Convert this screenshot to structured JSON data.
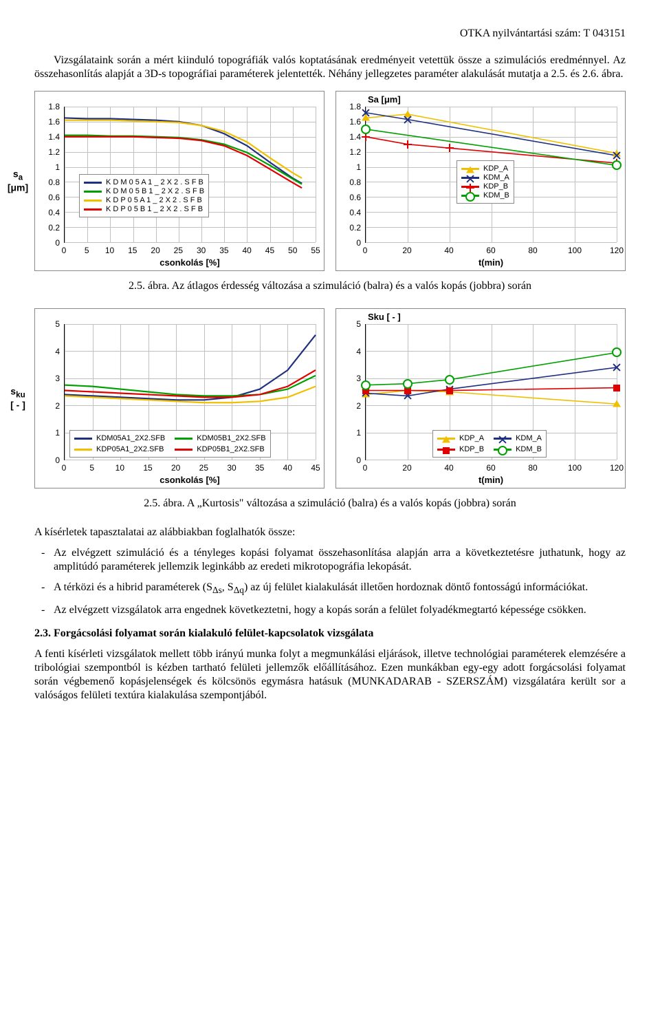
{
  "header": {
    "text": "OTKA nyilvántartási szám:  T  043151"
  },
  "paragraphs": {
    "intro": "Vizsgálataink során a mért kiinduló topográfiák valós koptatásának eredményeit vetettük össze a szimulációs eredménnyel. Az összehasonlítás alapját a 3D-s topográfiai paraméterek jelentették. Néhány jellegzetes paraméter alakulását mutatja a 2.5. és 2.6. ábra.",
    "caption25": "2.5. ábra. Az átlagos érdesség változása a szimuláció (balra) és a valós kopás (jobbra) során",
    "caption26": "2.5. ábra. A „Kurtosis\" változása a szimuláció (balra) és a valós kopás (jobbra) során",
    "conc_intro": "A kísérletek tapasztalatai az alábbiakban foglalhatók össze:",
    "bullet1": "Az elvégzett szimuláció és a tényleges kopási folyamat összehasonlítása alapján arra a következtetésre juthatunk, hogy az amplitúdó paraméterek jellemzik leginkább az eredeti mikrotopográfia lekopását.",
    "bullet2": "A térközi és a hibrid paraméterek (SΔs, SΔq) az új felület kialakulását illetően hordoznak döntő fontosságú információkat.",
    "bullet3": "Az elvégzett vizsgálatok arra engednek következtetni, hogy a kopás során a felület folyadékmegtartó képessége csökken.",
    "sec23_title": "2.3. Forgácsolási folyamat során kialakuló felület-kapcsolatok vizsgálata",
    "sec23_body": "A fenti kísérleti vizsgálatok mellett több irányú munka folyt a megmunkálási eljárások, illetve technológiai paraméterek elemzésére a tribológiai szempontból is kézben tartható felületi jellemzők előállításához. Ezen munkákban egy-egy adott forgácsolási folyamat során végbemenő kopásjelenségek és kölcsönös egymásra hatásuk (MUNKADARAB - SZERSZÁM) vizsgálatára került sor a valóságos felületi textúra kialakulása szempontjából."
  },
  "colors": {
    "blue": "#203080",
    "green": "#00a000",
    "yellow": "#f0c000",
    "red": "#e00000",
    "grid": "#c0c0c0",
    "border": "#888888"
  },
  "chart_sa_sim": {
    "y_title": "sₐ\n[μm]",
    "x_title": "csonkolás [%]",
    "x_ticks": [
      0,
      5,
      10,
      15,
      20,
      25,
      30,
      35,
      40,
      45,
      50,
      55
    ],
    "y_ticks": [
      0,
      0.2,
      0.4,
      0.6,
      0.8,
      1,
      1.2,
      1.4,
      1.6,
      1.8
    ],
    "xlim": [
      0,
      55
    ],
    "ylim": [
      0,
      1.8
    ],
    "legend": [
      "K D M 0 5 A 1 _ 2 X 2 . S F B",
      "K D M 0 5 B 1 _ 2 X 2 . S F B",
      "K D P 0 5 A 1 _ 2 X 2 . S F B",
      "K D P 0 5 B 1 _ 2 X 2 . S F B"
    ],
    "series": {
      "KDM05A1": {
        "color": "#203080",
        "pts": [
          [
            0,
            1.65
          ],
          [
            5,
            1.64
          ],
          [
            10,
            1.64
          ],
          [
            15,
            1.63
          ],
          [
            20,
            1.62
          ],
          [
            25,
            1.6
          ],
          [
            30,
            1.55
          ],
          [
            35,
            1.44
          ],
          [
            40,
            1.28
          ],
          [
            45,
            1.06
          ],
          [
            50,
            0.85
          ],
          [
            52,
            0.78
          ]
        ]
      },
      "KDM05B1": {
        "color": "#00a000",
        "pts": [
          [
            0,
            1.42
          ],
          [
            5,
            1.42
          ],
          [
            10,
            1.41
          ],
          [
            15,
            1.41
          ],
          [
            20,
            1.4
          ],
          [
            25,
            1.39
          ],
          [
            30,
            1.36
          ],
          [
            35,
            1.3
          ],
          [
            40,
            1.19
          ],
          [
            45,
            1.02
          ],
          [
            50,
            0.84
          ],
          [
            52,
            0.77
          ]
        ]
      },
      "KDP05A1": {
        "color": "#f0c000",
        "pts": [
          [
            0,
            1.62
          ],
          [
            5,
            1.62
          ],
          [
            10,
            1.62
          ],
          [
            15,
            1.61
          ],
          [
            20,
            1.6
          ],
          [
            25,
            1.59
          ],
          [
            30,
            1.55
          ],
          [
            35,
            1.47
          ],
          [
            40,
            1.33
          ],
          [
            45,
            1.12
          ],
          [
            50,
            0.92
          ],
          [
            52,
            0.85
          ]
        ]
      },
      "KDP05B1": {
        "color": "#e00000",
        "pts": [
          [
            0,
            1.4
          ],
          [
            5,
            1.4
          ],
          [
            10,
            1.4
          ],
          [
            15,
            1.4
          ],
          [
            20,
            1.39
          ],
          [
            25,
            1.38
          ],
          [
            30,
            1.35
          ],
          [
            35,
            1.28
          ],
          [
            40,
            1.15
          ],
          [
            45,
            0.97
          ],
          [
            50,
            0.79
          ],
          [
            52,
            0.72
          ]
        ]
      }
    }
  },
  "chart_sa_real": {
    "title": "Sa [μm]",
    "x_title": "t(min)",
    "x_ticks": [
      0,
      20,
      40,
      60,
      80,
      100,
      120
    ],
    "y_ticks": [
      0,
      0.2,
      0.4,
      0.6,
      0.8,
      1,
      1.2,
      1.4,
      1.6,
      1.8
    ],
    "xlim": [
      0,
      120
    ],
    "ylim": [
      0,
      1.8
    ],
    "legend": [
      "KDP_A",
      "KDM_A",
      "KDP_B",
      "KDM_B"
    ],
    "series": {
      "KDP_A": {
        "color": "#f0c000",
        "marker": "tri",
        "pts": [
          [
            0,
            1.65
          ],
          [
            20,
            1.7
          ],
          [
            120,
            1.18
          ]
        ]
      },
      "KDM_A": {
        "color": "#203080",
        "marker": "x",
        "pts": [
          [
            0,
            1.72
          ],
          [
            20,
            1.63
          ],
          [
            120,
            1.15
          ]
        ]
      },
      "KDP_B": {
        "color": "#e00000",
        "marker": "plus",
        "pts": [
          [
            0,
            1.4
          ],
          [
            20,
            1.3
          ],
          [
            40,
            1.25
          ],
          [
            120,
            1.05
          ]
        ]
      },
      "KDM_B": {
        "color": "#00a000",
        "marker": "circ",
        "pts": [
          [
            0,
            1.5
          ],
          [
            120,
            1.02
          ]
        ]
      }
    }
  },
  "chart_sku_sim": {
    "y_title": "sₖᵤ\n[ - ]",
    "x_title": "csonkolás [%]",
    "x_ticks": [
      0,
      5,
      10,
      15,
      20,
      25,
      30,
      35,
      40,
      45
    ],
    "y_ticks": [
      0,
      1,
      2,
      3,
      4,
      5
    ],
    "xlim": [
      0,
      45
    ],
    "ylim": [
      0,
      5
    ],
    "legend": [
      "KDM05A1_2X2.SFB",
      "KDM05B1_2X2.SFB",
      "KDP05A1_2X2.SFB",
      "KDP05B1_2X2.SFB"
    ],
    "series": {
      "KDM05A1": {
        "color": "#203080",
        "pts": [
          [
            0,
            2.4
          ],
          [
            5,
            2.35
          ],
          [
            10,
            2.3
          ],
          [
            15,
            2.25
          ],
          [
            20,
            2.2
          ],
          [
            25,
            2.2
          ],
          [
            30,
            2.3
          ],
          [
            35,
            2.6
          ],
          [
            40,
            3.3
          ],
          [
            45,
            4.6
          ]
        ]
      },
      "KDM05B1": {
        "color": "#00a000",
        "pts": [
          [
            0,
            2.75
          ],
          [
            5,
            2.7
          ],
          [
            10,
            2.6
          ],
          [
            15,
            2.5
          ],
          [
            20,
            2.4
          ],
          [
            25,
            2.35
          ],
          [
            30,
            2.35
          ],
          [
            35,
            2.4
          ],
          [
            40,
            2.6
          ],
          [
            45,
            3.1
          ]
        ]
      },
      "KDP05A1": {
        "color": "#f0c000",
        "pts": [
          [
            0,
            2.35
          ],
          [
            5,
            2.3
          ],
          [
            10,
            2.25
          ],
          [
            15,
            2.2
          ],
          [
            20,
            2.15
          ],
          [
            25,
            2.1
          ],
          [
            30,
            2.1
          ],
          [
            35,
            2.15
          ],
          [
            40,
            2.3
          ],
          [
            45,
            2.7
          ]
        ]
      },
      "KDP05B1": {
        "color": "#e00000",
        "pts": [
          [
            0,
            2.55
          ],
          [
            5,
            2.5
          ],
          [
            10,
            2.45
          ],
          [
            15,
            2.4
          ],
          [
            20,
            2.35
          ],
          [
            25,
            2.3
          ],
          [
            30,
            2.3
          ],
          [
            35,
            2.4
          ],
          [
            40,
            2.7
          ],
          [
            45,
            3.3
          ]
        ]
      }
    }
  },
  "chart_sku_real": {
    "title": "Sku [ - ]",
    "x_title": "t(min)",
    "x_ticks": [
      0,
      20,
      40,
      60,
      80,
      100,
      120
    ],
    "y_ticks": [
      0,
      1,
      2,
      3,
      4,
      5
    ],
    "xlim": [
      0,
      120
    ],
    "ylim": [
      0,
      5
    ],
    "legend": [
      "KDP_A",
      "KDM_A",
      "KDP_B",
      "KDM_B"
    ],
    "series": {
      "KDP_A": {
        "color": "#f0c000",
        "marker": "tri",
        "pts": [
          [
            0,
            2.4
          ],
          [
            20,
            2.55
          ],
          [
            40,
            2.5
          ],
          [
            120,
            2.05
          ]
        ]
      },
      "KDM_A": {
        "color": "#203080",
        "marker": "x",
        "pts": [
          [
            0,
            2.45
          ],
          [
            20,
            2.35
          ],
          [
            40,
            2.6
          ],
          [
            120,
            3.4
          ]
        ]
      },
      "KDP_B": {
        "color": "#e00000",
        "marker": "sq",
        "pts": [
          [
            0,
            2.55
          ],
          [
            20,
            2.55
          ],
          [
            40,
            2.55
          ],
          [
            120,
            2.65
          ]
        ]
      },
      "KDM_B": {
        "color": "#00a000",
        "marker": "circ",
        "pts": [
          [
            0,
            2.75
          ],
          [
            20,
            2.8
          ],
          [
            40,
            2.95
          ],
          [
            120,
            3.95
          ]
        ]
      }
    }
  }
}
